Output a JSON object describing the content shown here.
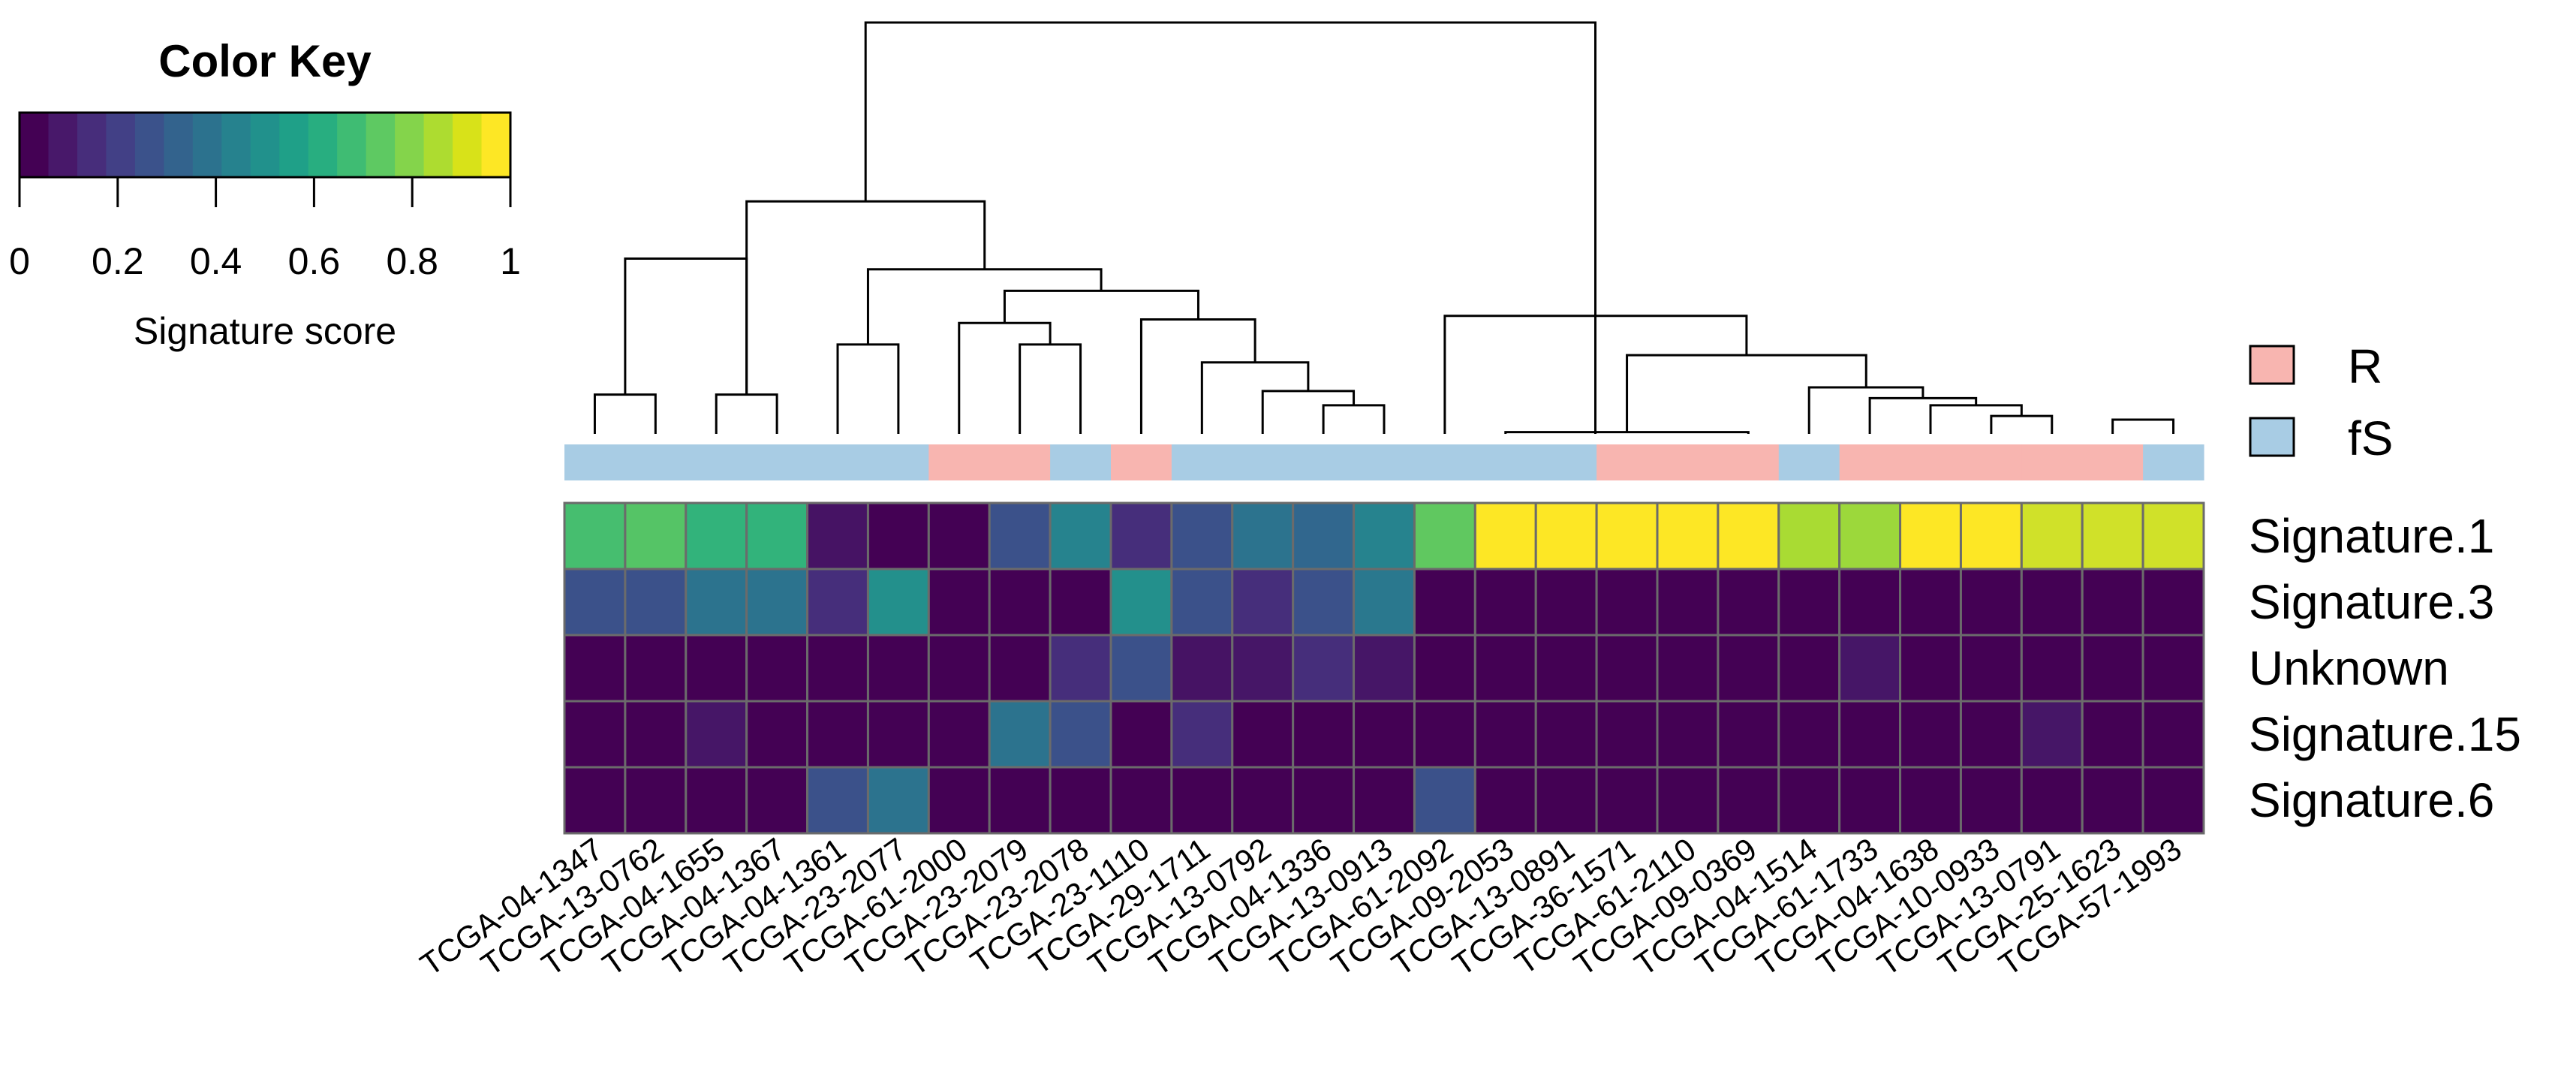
{
  "chart_data": {
    "type": "heatmap",
    "color_key": {
      "title": "Color Key",
      "label": "Signature score",
      "ticks": [
        "0",
        "0.2",
        "0.4",
        "0.6",
        "0.8",
        "1"
      ],
      "range": [
        0,
        1
      ],
      "colors": [
        "#440154",
        "#48186a",
        "#472d7b",
        "#424086",
        "#3b528b",
        "#33638d",
        "#2c728e",
        "#26828e",
        "#21918c",
        "#1fa088",
        "#28ae80",
        "#3fbc73",
        "#5ec962",
        "#84d44b",
        "#addc30",
        "#d8e219",
        "#fde725"
      ]
    },
    "legend": [
      {
        "label": "R",
        "color": "#f8b5b0"
      },
      {
        "label": "fS",
        "color": "#a8cce4"
      }
    ],
    "rows": [
      "Signature.1",
      "Signature.3",
      "Unknown",
      "Signature.15",
      "Signature.6"
    ],
    "columns": [
      "TCGA-04-1347",
      "TCGA-13-0762",
      "TCGA-04-1655",
      "TCGA-04-1367",
      "TCGA-04-1361",
      "TCGA-23-2077",
      "TCGA-61-2000",
      "TCGA-23-2079",
      "TCGA-23-2078",
      "TCGA-23-1110",
      "TCGA-29-1711",
      "TCGA-13-0792",
      "TCGA-04-1336",
      "TCGA-13-0913",
      "TCGA-61-2092",
      "TCGA-09-2053",
      "TCGA-13-0891",
      "TCGA-36-1571",
      "TCGA-61-2110",
      "TCGA-09-0369",
      "TCGA-04-1514",
      "TCGA-61-1733",
      "TCGA-04-1638",
      "TCGA-10-0933",
      "TCGA-13-0791",
      "TCGA-25-1623",
      "TCGA-57-1993"
    ],
    "column_groups": [
      "fS",
      "fS",
      "fS",
      "fS",
      "fS",
      "fS",
      "R",
      "R",
      "fS",
      "R",
      "fS",
      "fS",
      "fS",
      "fS",
      "fS",
      "fS",
      "fS",
      "R",
      "R",
      "R",
      "fS",
      "R",
      "R",
      "R",
      "R",
      "R",
      "fS"
    ],
    "values": [
      [
        0.7,
        0.73,
        0.65,
        0.65,
        0.05,
        0.0,
        0.0,
        0.25,
        0.45,
        0.13,
        0.25,
        0.38,
        0.33,
        0.45,
        0.75,
        1.0,
        1.0,
        1.0,
        1.0,
        1.0,
        0.87,
        0.85,
        1.0,
        1.0,
        0.93,
        0.93,
        0.93
      ],
      [
        0.25,
        0.25,
        0.38,
        0.38,
        0.13,
        0.5,
        0.0,
        0.0,
        0.0,
        0.5,
        0.25,
        0.13,
        0.25,
        0.4,
        0.0,
        0.0,
        0.0,
        0.0,
        0.0,
        0.0,
        0.0,
        0.0,
        0.0,
        0.0,
        0.0,
        0.0,
        0.0
      ],
      [
        0.0,
        0.0,
        0.0,
        0.0,
        0.0,
        0.0,
        0.0,
        0.0,
        0.13,
        0.25,
        0.05,
        0.06,
        0.13,
        0.06,
        0.0,
        0.0,
        0.0,
        0.0,
        0.0,
        0.0,
        0.0,
        0.06,
        0.0,
        0.0,
        0.0,
        0.0,
        0.0
      ],
      [
        0.0,
        0.0,
        0.06,
        0.0,
        0.0,
        0.0,
        0.0,
        0.38,
        0.25,
        0.0,
        0.13,
        0.0,
        0.0,
        0.0,
        0.0,
        0.0,
        0.0,
        0.0,
        0.0,
        0.0,
        0.0,
        0.0,
        0.0,
        0.0,
        0.06,
        0.0,
        0.0
      ],
      [
        0.0,
        0.0,
        0.0,
        0.0,
        0.25,
        0.38,
        0.0,
        0.0,
        0.0,
        0.0,
        0.0,
        0.0,
        0.0,
        0.0,
        0.25,
        0.0,
        0.0,
        0.0,
        0.0,
        0.0,
        0.0,
        0.0,
        0.0,
        0.0,
        0.0,
        0.0,
        0.0
      ]
    ],
    "dendrogram_merges": [
      [
        0,
        1,
        1.1
      ],
      [
        2,
        3,
        1.1
      ],
      [
        4,
        5,
        2.5
      ],
      [
        7,
        8,
        2.5
      ],
      [
        12,
        13,
        0.8
      ],
      [
        25,
        26,
        0.4
      ],
      [
        11,
        12.5,
        1.2
      ],
      [
        23,
        24,
        0.5
      ],
      [
        22,
        23.5,
        0.8
      ],
      [
        21,
        22.75,
        1.0
      ],
      [
        20,
        21.875,
        1.3
      ],
      [
        10,
        11.75,
        2.0
      ],
      [
        6,
        7.5,
        3.1
      ],
      [
        15,
        19,
        0.05
      ],
      [
        0.5,
        2.5,
        4.9
      ],
      [
        17,
        20.94,
        2.2
      ],
      [
        9,
        10.875,
        3.2
      ],
      [
        6.75,
        9.94,
        4.0
      ],
      [
        4.5,
        8.34,
        4.6
      ],
      [
        14,
        18.97,
        3.3
      ],
      [
        2.5,
        6.42,
        6.5
      ],
      [
        4.46,
        16.48,
        11.5
      ]
    ]
  }
}
